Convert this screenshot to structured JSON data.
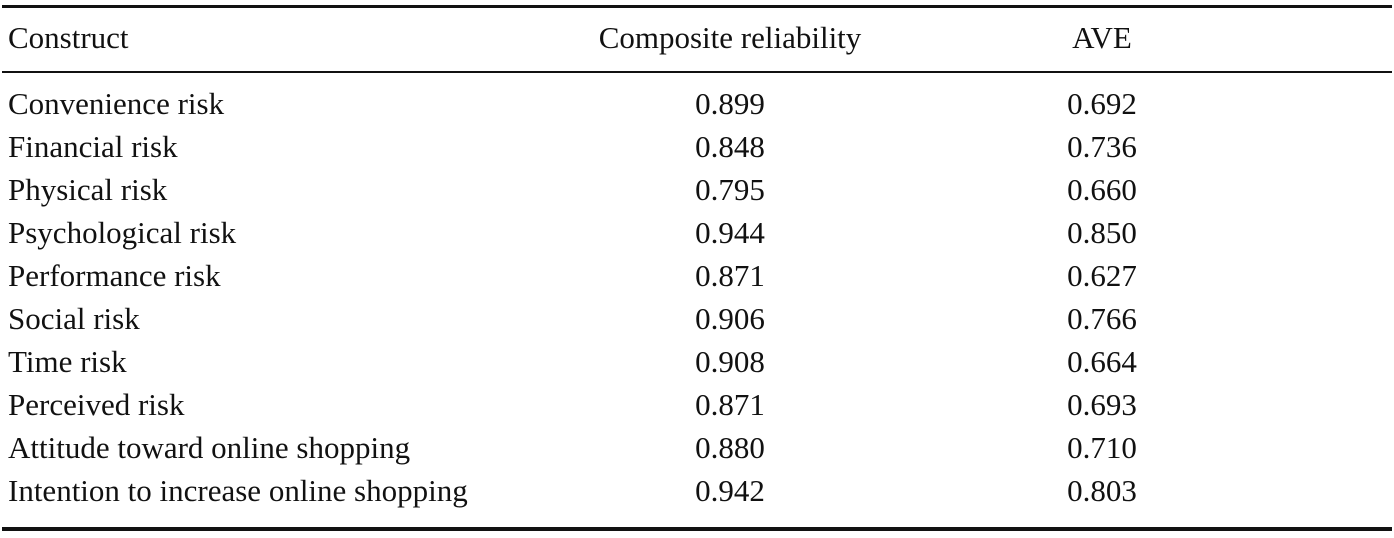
{
  "table": {
    "headers": [
      "Construct",
      "Composite reliability",
      "AVE"
    ],
    "rows": [
      {
        "construct": "Convenience risk",
        "cr": "0.899",
        "ave": "0.692"
      },
      {
        "construct": "Financial risk",
        "cr": "0.848",
        "ave": "0.736"
      },
      {
        "construct": "Physical risk",
        "cr": "0.795",
        "ave": "0.660"
      },
      {
        "construct": "Psychological risk",
        "cr": "0.944",
        "ave": "0.850"
      },
      {
        "construct": "Performance risk",
        "cr": "0.871",
        "ave": "0.627"
      },
      {
        "construct": "Social risk",
        "cr": "0.906",
        "ave": "0.766"
      },
      {
        "construct": "Time risk",
        "cr": "0.908",
        "ave": "0.664"
      },
      {
        "construct": "Perceived risk",
        "cr": "0.871",
        "ave": "0.693"
      },
      {
        "construct": "Attitude toward online shopping",
        "cr": "0.880",
        "ave": "0.710"
      },
      {
        "construct": "Intention to increase online shopping",
        "cr": "0.942",
        "ave": "0.803"
      }
    ]
  }
}
